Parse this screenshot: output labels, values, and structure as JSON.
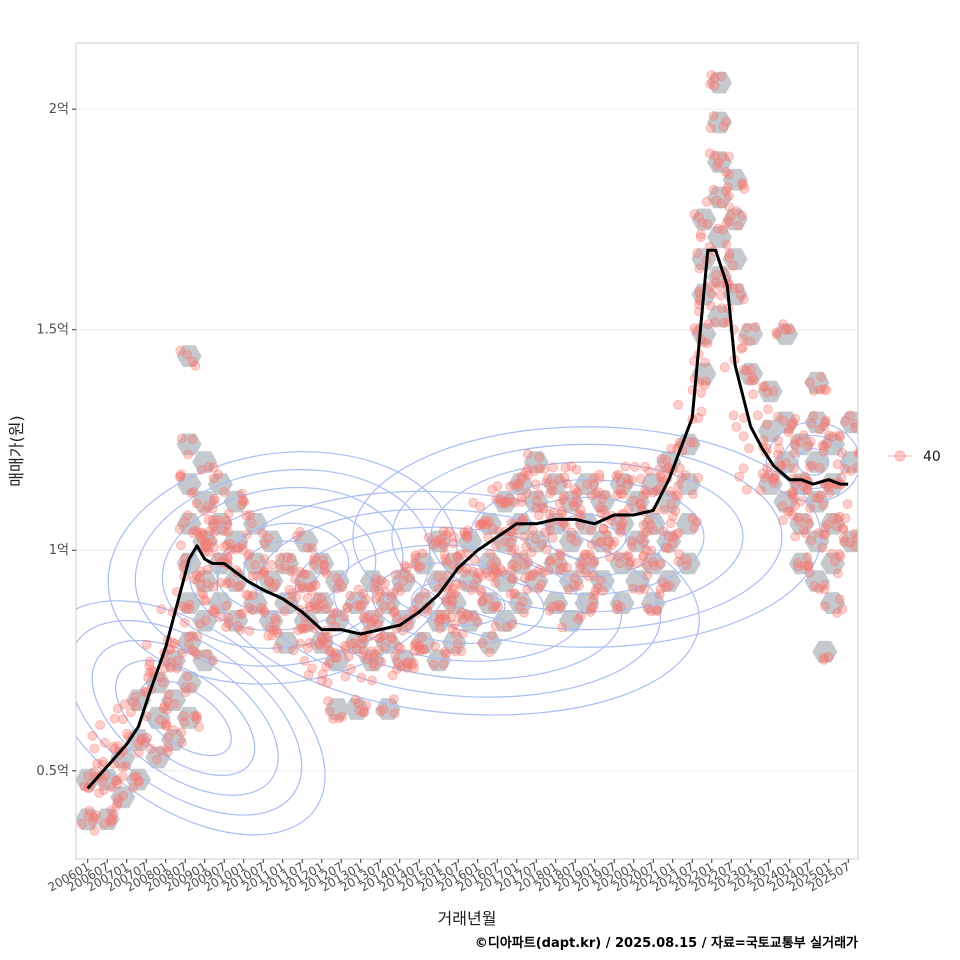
{
  "chart_data": {
    "type": "scatter",
    "xlabel": "거래년월",
    "ylabel": "매매가(원)",
    "caption": "©디아파트(dapt.kr) / 2025.08.15 / 자료=국토교통부 실거래가",
    "x_ticks": [
      "200601",
      "200607",
      "200701",
      "200707",
      "200801",
      "200807",
      "200901",
      "200907",
      "201001",
      "201007",
      "201101",
      "201107",
      "201201",
      "201207",
      "201301",
      "201307",
      "201401",
      "201407",
      "201501",
      "201507",
      "201601",
      "201607",
      "201701",
      "201707",
      "201801",
      "201807",
      "201901",
      "201907",
      "202001",
      "202007",
      "202101",
      "202107",
      "202201",
      "202207",
      "202301",
      "202307",
      "202401",
      "202407",
      "202501",
      "202507"
    ],
    "y_ticks": [
      {
        "value": 0.5,
        "label": "0.5억"
      },
      {
        "value": 1.0,
        "label": "1억"
      },
      {
        "value": 1.5,
        "label": "1.5억"
      },
      {
        "value": 2.0,
        "label": "2억"
      }
    ],
    "xlim": [
      2005.7,
      2025.75
    ],
    "ylim": [
      0.3,
      2.15
    ],
    "y_unit": "억원",
    "grid": true,
    "legend": {
      "position": "right",
      "entries": [
        {
          "label": "40",
          "color": "#f8766d"
        }
      ]
    },
    "colors": {
      "points": "#f8766d",
      "hexbin": "#c4c9ce",
      "contour": "#a9bdf0",
      "trend": "#000000",
      "grid": "#ebebeb",
      "panel_border": "#cccccc"
    },
    "trend_line": {
      "x": [
        2006.0,
        2006.3,
        2006.6,
        2007.0,
        2007.3,
        2007.6,
        2008.0,
        2008.3,
        2008.6,
        2008.8,
        2009.0,
        2009.2,
        2009.5,
        2009.8,
        2010.1,
        2010.5,
        2011.0,
        2011.5,
        2012.0,
        2012.5,
        2013.0,
        2013.5,
        2014.0,
        2014.5,
        2015.0,
        2015.5,
        2016.0,
        2016.5,
        2017.0,
        2017.5,
        2018.0,
        2018.5,
        2019.0,
        2019.5,
        2020.0,
        2020.5,
        2020.9,
        2021.2,
        2021.5,
        2021.9,
        2022.1,
        2022.4,
        2022.6,
        2022.8,
        2023.0,
        2023.3,
        2023.6,
        2024.0,
        2024.3,
        2024.6,
        2025.0,
        2025.3,
        2025.5
      ],
      "y": [
        0.46,
        0.49,
        0.52,
        0.56,
        0.6,
        0.68,
        0.78,
        0.88,
        0.98,
        1.01,
        0.98,
        0.97,
        0.97,
        0.95,
        0.93,
        0.91,
        0.89,
        0.86,
        0.82,
        0.82,
        0.81,
        0.82,
        0.83,
        0.86,
        0.9,
        0.96,
        1.0,
        1.03,
        1.06,
        1.06,
        1.07,
        1.07,
        1.06,
        1.08,
        1.08,
        1.09,
        1.16,
        1.23,
        1.3,
        1.68,
        1.68,
        1.6,
        1.42,
        1.35,
        1.28,
        1.23,
        1.19,
        1.16,
        1.16,
        1.15,
        1.16,
        1.15,
        1.15
      ]
    },
    "hexbins": [
      [
        2006.0,
        0.39
      ],
      [
        2006.5,
        0.39
      ],
      [
        2006.0,
        0.48
      ],
      [
        2006.5,
        0.48
      ],
      [
        2006.9,
        0.44
      ],
      [
        2006.9,
        0.53
      ],
      [
        2007.3,
        0.48
      ],
      [
        2007.3,
        0.57
      ],
      [
        2007.3,
        0.66
      ],
      [
        2007.8,
        0.53
      ],
      [
        2007.8,
        0.62
      ],
      [
        2007.8,
        0.7
      ],
      [
        2008.2,
        0.57
      ],
      [
        2008.2,
        0.66
      ],
      [
        2008.2,
        0.75
      ],
      [
        2008.6,
        0.62
      ],
      [
        2008.6,
        0.7
      ],
      [
        2008.6,
        0.79
      ],
      [
        2008.6,
        0.88
      ],
      [
        2008.6,
        0.97
      ],
      [
        2008.6,
        1.06
      ],
      [
        2008.6,
        1.15
      ],
      [
        2008.6,
        1.24
      ],
      [
        2008.6,
        1.44
      ],
      [
        2009.0,
        0.75
      ],
      [
        2009.0,
        0.84
      ],
      [
        2009.0,
        0.93
      ],
      [
        2009.0,
        1.02
      ],
      [
        2009.0,
        1.11
      ],
      [
        2009.0,
        1.2
      ],
      [
        2009.4,
        0.88
      ],
      [
        2009.4,
        0.97
      ],
      [
        2009.4,
        1.06
      ],
      [
        2009.4,
        1.15
      ],
      [
        2009.8,
        0.84
      ],
      [
        2009.8,
        0.93
      ],
      [
        2009.8,
        1.02
      ],
      [
        2009.8,
        1.11
      ],
      [
        2010.3,
        0.88
      ],
      [
        2010.3,
        0.97
      ],
      [
        2010.3,
        1.06
      ],
      [
        2010.7,
        0.84
      ],
      [
        2010.7,
        0.93
      ],
      [
        2010.7,
        1.02
      ],
      [
        2011.1,
        0.79
      ],
      [
        2011.1,
        0.88
      ],
      [
        2011.1,
        0.97
      ],
      [
        2011.6,
        0.84
      ],
      [
        2011.6,
        0.93
      ],
      [
        2011.6,
        1.02
      ],
      [
        2012.0,
        0.79
      ],
      [
        2012.0,
        0.88
      ],
      [
        2012.0,
        0.97
      ],
      [
        2012.4,
        0.75
      ],
      [
        2012.4,
        0.84
      ],
      [
        2012.4,
        0.93
      ],
      [
        2012.4,
        0.64
      ],
      [
        2012.9,
        0.79
      ],
      [
        2012.9,
        0.88
      ],
      [
        2012.9,
        0.64
      ],
      [
        2013.3,
        0.75
      ],
      [
        2013.3,
        0.84
      ],
      [
        2013.3,
        0.93
      ],
      [
        2013.7,
        0.79
      ],
      [
        2013.7,
        0.88
      ],
      [
        2013.7,
        0.64
      ],
      [
        2014.1,
        0.75
      ],
      [
        2014.1,
        0.84
      ],
      [
        2014.1,
        0.93
      ],
      [
        2014.6,
        0.79
      ],
      [
        2014.6,
        0.88
      ],
      [
        2014.6,
        0.97
      ],
      [
        2015.0,
        0.75
      ],
      [
        2015.0,
        0.84
      ],
      [
        2015.0,
        0.93
      ],
      [
        2015.0,
        1.02
      ],
      [
        2015.4,
        0.79
      ],
      [
        2015.4,
        0.88
      ],
      [
        2015.4,
        0.97
      ],
      [
        2015.8,
        0.84
      ],
      [
        2015.8,
        0.93
      ],
      [
        2015.8,
        1.02
      ],
      [
        2016.3,
        0.79
      ],
      [
        2016.3,
        0.88
      ],
      [
        2016.3,
        0.97
      ],
      [
        2016.3,
        1.06
      ],
      [
        2016.7,
        0.84
      ],
      [
        2016.7,
        0.93
      ],
      [
        2016.7,
        1.02
      ],
      [
        2016.7,
        1.11
      ],
      [
        2017.1,
        0.88
      ],
      [
        2017.1,
        0.97
      ],
      [
        2017.1,
        1.06
      ],
      [
        2017.1,
        1.15
      ],
      [
        2017.5,
        0.93
      ],
      [
        2017.5,
        1.02
      ],
      [
        2017.5,
        1.11
      ],
      [
        2017.5,
        1.2
      ],
      [
        2018.0,
        0.88
      ],
      [
        2018.0,
        0.97
      ],
      [
        2018.0,
        1.06
      ],
      [
        2018.0,
        1.15
      ],
      [
        2018.4,
        0.84
      ],
      [
        2018.4,
        0.93
      ],
      [
        2018.4,
        1.02
      ],
      [
        2018.4,
        1.11
      ],
      [
        2018.8,
        0.88
      ],
      [
        2018.8,
        0.97
      ],
      [
        2018.8,
        1.06
      ],
      [
        2018.8,
        1.15
      ],
      [
        2019.2,
        0.93
      ],
      [
        2019.2,
        1.02
      ],
      [
        2019.2,
        1.11
      ],
      [
        2019.7,
        0.88
      ],
      [
        2019.7,
        0.97
      ],
      [
        2019.7,
        1.06
      ],
      [
        2019.7,
        1.15
      ],
      [
        2020.1,
        0.93
      ],
      [
        2020.1,
        1.02
      ],
      [
        2020.1,
        1.11
      ],
      [
        2020.5,
        0.88
      ],
      [
        2020.5,
        0.97
      ],
      [
        2020.5,
        1.06
      ],
      [
        2020.5,
        1.15
      ],
      [
        2020.9,
        0.93
      ],
      [
        2020.9,
        1.02
      ],
      [
        2020.9,
        1.11
      ],
      [
        2020.9,
        1.2
      ],
      [
        2021.4,
        0.97
      ],
      [
        2021.4,
        1.06
      ],
      [
        2021.4,
        1.15
      ],
      [
        2021.4,
        1.24
      ],
      [
        2021.8,
        1.4
      ],
      [
        2021.8,
        1.49
      ],
      [
        2021.8,
        1.58
      ],
      [
        2021.8,
        1.66
      ],
      [
        2022.2,
        1.53
      ],
      [
        2022.2,
        1.62
      ],
      [
        2022.2,
        1.71
      ],
      [
        2022.2,
        1.8
      ],
      [
        2022.2,
        1.88
      ],
      [
        2022.2,
        1.97
      ],
      [
        2021.8,
        1.75
      ],
      [
        2022.2,
        2.06
      ],
      [
        2022.6,
        1.58
      ],
      [
        2022.6,
        1.66
      ],
      [
        2022.6,
        1.75
      ],
      [
        2022.6,
        1.84
      ],
      [
        2023.0,
        1.4
      ],
      [
        2023.0,
        1.49
      ],
      [
        2023.5,
        1.27
      ],
      [
        2023.5,
        1.36
      ],
      [
        2023.5,
        1.15
      ],
      [
        2023.9,
        1.2
      ],
      [
        2023.9,
        1.11
      ],
      [
        2023.9,
        1.29
      ],
      [
        2023.9,
        1.49
      ],
      [
        2024.3,
        1.15
      ],
      [
        2024.3,
        1.24
      ],
      [
        2024.3,
        1.06
      ],
      [
        2024.3,
        0.97
      ],
      [
        2024.7,
        1.2
      ],
      [
        2024.7,
        1.29
      ],
      [
        2024.7,
        1.11
      ],
      [
        2024.7,
        1.02
      ],
      [
        2024.7,
        0.93
      ],
      [
        2024.7,
        1.38
      ],
      [
        2025.1,
        1.15
      ],
      [
        2025.1,
        1.24
      ],
      [
        2025.1,
        1.06
      ],
      [
        2025.1,
        0.97
      ],
      [
        2025.1,
        0.88
      ],
      [
        2025.6,
        1.2
      ],
      [
        2025.6,
        1.29
      ],
      [
        2025.6,
        1.02
      ],
      [
        2024.9,
        0.77
      ]
    ],
    "contours": [
      {
        "center": [
          2008.5,
          0.62
        ],
        "rx": [
          0.7,
          1.1,
          1.5,
          1.9,
          2.3
        ],
        "ry": [
          0.12,
          0.18,
          0.24,
          0.3,
          0.36
        ],
        "rot": -55
      },
      {
        "center": [
          2011.0,
          0.96
        ],
        "rx": [
          1.0,
          1.7,
          2.4,
          3.1,
          3.8,
          4.5
        ],
        "ry": [
          0.06,
          0.1,
          0.14,
          0.18,
          0.22,
          0.26
        ],
        "rot": -8
      },
      {
        "center": [
          2015.5,
          0.88
        ],
        "rx": [
          1.2,
          2.2,
          3.2,
          4.2,
          5.2,
          6.2
        ],
        "ry": [
          0.05,
          0.09,
          0.13,
          0.17,
          0.21,
          0.25
        ],
        "rot": 5
      },
      {
        "center": [
          2018.8,
          1.03
        ],
        "rx": [
          1.0,
          2.0,
          3.0,
          4.0,
          5.0,
          6.0
        ],
        "ry": [
          0.05,
          0.09,
          0.13,
          0.17,
          0.21,
          0.25
        ],
        "rot": 0
      },
      {
        "center": [
          2024.6,
          1.2
        ],
        "rx": [
          0.4,
          0.8,
          1.2
        ],
        "ry": [
          0.03,
          0.06,
          0.09
        ],
        "rot": 0
      }
    ]
  }
}
